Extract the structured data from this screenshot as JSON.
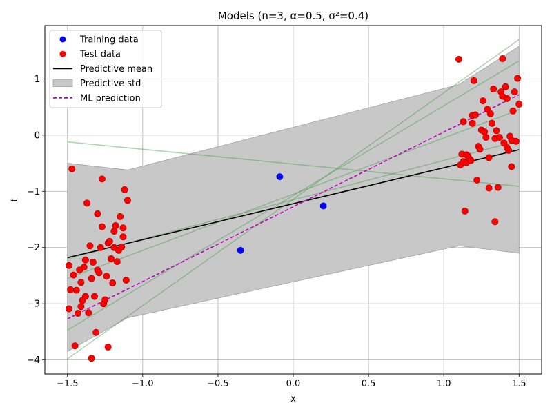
{
  "chart_data": {
    "type": "scatter",
    "title": "Models (n=3, α=0.5, σ²=0.4)",
    "xlabel": "x",
    "ylabel": "t",
    "xlim": [
      -1.65,
      1.65
    ],
    "ylim": [
      -4.25,
      1.95
    ],
    "xticks": [
      -1.5,
      -1.0,
      -0.5,
      0.0,
      0.5,
      1.0,
      1.5
    ],
    "xtick_labels": [
      "−1.5",
      "−1.0",
      "−0.5",
      "0.0",
      "0.5",
      "1.0",
      "1.5"
    ],
    "yticks": [
      -4,
      -3,
      -2,
      -1,
      0,
      1
    ],
    "ytick_labels": [
      "−4",
      "−3",
      "−2",
      "−1",
      "0",
      "1"
    ],
    "grid": true,
    "legend_position": "upper-left",
    "colors": {
      "training": "#0000ff",
      "test": "#ff0000",
      "test_edge": "#b40000",
      "mean": "#000000",
      "std_fill": "#c8c8c8",
      "std_edge": "#a0a0a0",
      "ml": "#bf00bf",
      "samples": "#4c9a4c"
    },
    "legend": [
      {
        "label": "Training data",
        "kind": "dot",
        "color": "#0000ff"
      },
      {
        "label": "Test data",
        "kind": "dot",
        "color": "#ff0000"
      },
      {
        "label": "Predictive mean",
        "kind": "line",
        "color": "#000000"
      },
      {
        "label": "Predictive std",
        "kind": "patch",
        "color": "#c8c8c8"
      },
      {
        "label": "ML prediction",
        "kind": "dashed",
        "color": "#bf00bf"
      }
    ],
    "training_data": [
      {
        "x": -0.35,
        "y": -2.05
      },
      {
        "x": -0.09,
        "y": -0.74
      },
      {
        "x": 0.2,
        "y": -1.26
      }
    ],
    "test_data": [
      [
        -1.49,
        -2.32
      ],
      [
        -1.49,
        -3.09
      ],
      [
        -1.48,
        -2.75
      ],
      [
        -1.47,
        -0.6
      ],
      [
        -1.46,
        -2.49
      ],
      [
        -1.45,
        -3.75
      ],
      [
        -1.44,
        -2.76
      ],
      [
        -1.43,
        -3.17
      ],
      [
        -1.42,
        -2.4
      ],
      [
        -1.41,
        -3.05
      ],
      [
        -1.41,
        -2.62
      ],
      [
        -1.4,
        -2.94
      ],
      [
        -1.39,
        -2.35
      ],
      [
        -1.38,
        -2.87
      ],
      [
        -1.38,
        -2.22
      ],
      [
        -1.37,
        -1.21
      ],
      [
        -1.36,
        -3.16
      ],
      [
        -1.35,
        -1.97
      ],
      [
        -1.34,
        -3.97
      ],
      [
        -1.34,
        -2.55
      ],
      [
        -1.33,
        -2.26
      ],
      [
        -1.32,
        -2.87
      ],
      [
        -1.31,
        -3.51
      ],
      [
        -1.3,
        -2.4
      ],
      [
        -1.3,
        -1.4
      ],
      [
        -1.29,
        -2.45
      ],
      [
        -1.28,
        -2.0
      ],
      [
        -1.27,
        -1.63
      ],
      [
        -1.27,
        -0.78
      ],
      [
        -1.26,
        -3.0
      ],
      [
        -1.25,
        -2.93
      ],
      [
        -1.24,
        -2.51
      ],
      [
        -1.23,
        -3.77
      ],
      [
        -1.23,
        -1.92
      ],
      [
        -1.22,
        -1.89
      ],
      [
        -1.21,
        -2.2
      ],
      [
        -1.2,
        -2.63
      ],
      [
        -1.19,
        -2.0
      ],
      [
        -1.19,
        -1.71
      ],
      [
        -1.18,
        -1.61
      ],
      [
        -1.17,
        -2.25
      ],
      [
        -1.16,
        -2.05
      ],
      [
        -1.15,
        -1.45
      ],
      [
        -1.14,
        -1.99
      ],
      [
        -1.13,
        -1.81
      ],
      [
        -1.13,
        -1.65
      ],
      [
        -1.12,
        -0.97
      ],
      [
        -1.11,
        -2.58
      ],
      [
        -1.1,
        -1.16
      ],
      [
        1.1,
        1.35
      ],
      [
        1.11,
        -0.53
      ],
      [
        1.12,
        -0.34
      ],
      [
        1.13,
        -0.47
      ],
      [
        1.13,
        0.24
      ],
      [
        1.14,
        -1.35
      ],
      [
        1.15,
        -0.49
      ],
      [
        1.15,
        -0.35
      ],
      [
        1.16,
        -0.37
      ],
      [
        1.17,
        -0.42
      ],
      [
        1.18,
        -0.45
      ],
      [
        1.19,
        0.35
      ],
      [
        1.19,
        0.21
      ],
      [
        1.2,
        0.97
      ],
      [
        1.21,
        0.36
      ],
      [
        1.22,
        -0.8
      ],
      [
        1.23,
        -0.2
      ],
      [
        1.24,
        -0.25
      ],
      [
        1.25,
        0.09
      ],
      [
        1.26,
        0.61
      ],
      [
        1.27,
        0.06
      ],
      [
        1.28,
        -0.04
      ],
      [
        1.29,
        0.46
      ],
      [
        1.3,
        -0.4
      ],
      [
        1.3,
        -0.94
      ],
      [
        1.31,
        0.38
      ],
      [
        1.32,
        0.21
      ],
      [
        1.33,
        0.82
      ],
      [
        1.34,
        -1.54
      ],
      [
        1.34,
        -0.06
      ],
      [
        1.35,
        0.08
      ],
      [
        1.36,
        -0.93
      ],
      [
        1.37,
        -0.04
      ],
      [
        1.38,
        0.77
      ],
      [
        1.39,
        1.36
      ],
      [
        1.39,
        0.69
      ],
      [
        1.4,
        -0.14
      ],
      [
        1.41,
        0.86
      ],
      [
        1.42,
        0.65
      ],
      [
        1.42,
        -0.22
      ],
      [
        1.43,
        -0.27
      ],
      [
        1.44,
        -0.02
      ],
      [
        1.45,
        -0.56
      ],
      [
        1.45,
        -0.09
      ],
      [
        1.46,
        0.43
      ],
      [
        1.47,
        0.77
      ],
      [
        1.48,
        -0.11
      ],
      [
        1.49,
        1.01
      ],
      [
        1.5,
        0.55
      ]
    ],
    "predictive_mean": [
      [
        -1.5,
        -2.18
      ],
      [
        1.5,
        -0.26
      ]
    ],
    "predictive_std_upper": [
      [
        -1.5,
        -0.5
      ],
      [
        -1.1,
        -0.62
      ],
      [
        1.1,
        0.9
      ],
      [
        1.5,
        1.58
      ]
    ],
    "predictive_std_lower": [
      [
        -1.5,
        -3.85
      ],
      [
        -1.1,
        -3.25
      ],
      [
        1.1,
        -1.97
      ],
      [
        1.5,
        -2.1
      ]
    ],
    "ml_prediction": [
      [
        -1.5,
        -3.27
      ],
      [
        1.5,
        0.72
      ]
    ],
    "sample_models": [
      [
        [
          -1.5,
          -0.12
        ],
        [
          1.5,
          -0.91
        ]
      ],
      [
        [
          -1.5,
          -3.47
        ],
        [
          1.5,
          1.32
        ]
      ],
      [
        [
          -1.5,
          -3.98
        ],
        [
          1.5,
          1.7
        ]
      ],
      [
        [
          -1.5,
          -2.55
        ],
        [
          1.5,
          0.45
        ]
      ],
      [
        [
          -1.5,
          -2.2
        ],
        [
          1.5,
          -0.1
        ]
      ]
    ]
  }
}
